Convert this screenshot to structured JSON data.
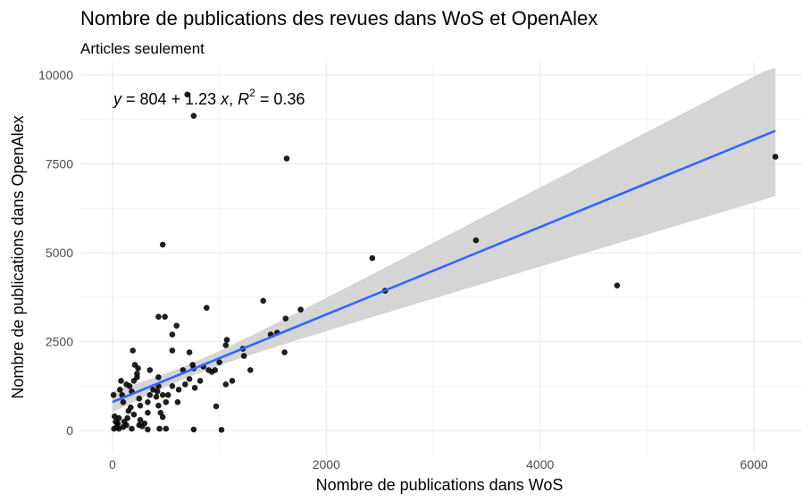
{
  "chart_data": {
    "type": "scatter",
    "title": "Nombre de publications des revues dans WoS et OpenAlex",
    "subtitle": "Articles seulement",
    "xlabel": "Nombre de publications dans WoS",
    "ylabel": "Nombre de publications dans OpenAlex",
    "xlim": [
      -300,
      6450
    ],
    "ylim": [
      -650,
      10350
    ],
    "x_ticks": [
      0,
      2000,
      4000,
      6000
    ],
    "x_tick_labels": [
      "0",
      "2000",
      "4000",
      "6000"
    ],
    "y_ticks": [
      0,
      2500,
      5000,
      7500,
      10000
    ],
    "y_tick_labels": [
      "0",
      "2500",
      "5000",
      "7500",
      "10000"
    ],
    "grid": true,
    "equation": {
      "y": "y",
      "eq_sign": " = ",
      "intercept": "804",
      "plus": " + ",
      "slope": "1.23",
      "x": "x",
      "comma": ", ",
      "r": "R",
      "sup": "2",
      "r2_value": " = 0.36"
    },
    "regression": {
      "intercept": 804,
      "slope": 1.23,
      "x_range": [
        0,
        6200
      ],
      "ci_lower_end": 6600,
      "ci_upper_end": 10200,
      "ci_upper_start": 1100,
      "ci_lower_start": 500,
      "line_color": "#3366FF",
      "ci_color": "#D3D3D3"
    },
    "point_color": "#000000",
    "points": [
      [
        6200,
        7700
      ],
      [
        4720,
        4080
      ],
      [
        3400,
        5350
      ],
      [
        2550,
        3930
      ],
      [
        2430,
        4850
      ],
      [
        1630,
        7650
      ],
      [
        1620,
        3150
      ],
      [
        1610,
        2200
      ],
      [
        1760,
        3400
      ],
      [
        1410,
        3650
      ],
      [
        1480,
        2700
      ],
      [
        1540,
        2750
      ],
      [
        1290,
        1700
      ],
      [
        1220,
        2300
      ],
      [
        1230,
        2100
      ],
      [
        1120,
        1400
      ],
      [
        1070,
        2550
      ],
      [
        1060,
        2400
      ],
      [
        1060,
        1300
      ],
      [
        1000,
        1920
      ],
      [
        970,
        680
      ],
      [
        1020,
        20
      ],
      [
        960,
        1700
      ],
      [
        930,
        1650
      ],
      [
        900,
        1700
      ],
      [
        880,
        3450
      ],
      [
        850,
        1800
      ],
      [
        820,
        1400
      ],
      [
        770,
        1200
      ],
      [
        750,
        1850
      ],
      [
        760,
        1750
      ],
      [
        760,
        8850
      ],
      [
        700,
        9450
      ],
      [
        720,
        1450
      ],
      [
        680,
        1300
      ],
      [
        660,
        1700
      ],
      [
        720,
        2200
      ],
      [
        600,
        2950
      ],
      [
        560,
        2700
      ],
      [
        560,
        2250
      ],
      [
        560,
        1250
      ],
      [
        520,
        1000
      ],
      [
        500,
        800
      ],
      [
        490,
        3200
      ],
      [
        470,
        5230
      ],
      [
        430,
        3200
      ],
      [
        430,
        1500
      ],
      [
        420,
        1100
      ],
      [
        430,
        700
      ],
      [
        450,
        500
      ],
      [
        470,
        380
      ],
      [
        410,
        950
      ],
      [
        350,
        1700
      ],
      [
        330,
        800
      ],
      [
        330,
        500
      ],
      [
        300,
        200
      ],
      [
        280,
        120
      ],
      [
        260,
        300
      ],
      [
        250,
        900
      ],
      [
        240,
        1750
      ],
      [
        230,
        1600
      ],
      [
        210,
        1850
      ],
      [
        200,
        1400
      ],
      [
        180,
        1100
      ],
      [
        190,
        2250
      ],
      [
        170,
        650
      ],
      [
        160,
        1250
      ],
      [
        150,
        550
      ],
      [
        140,
        350
      ],
      [
        130,
        150
      ],
      [
        110,
        250
      ],
      [
        100,
        800
      ],
      [
        90,
        1000
      ],
      [
        80,
        1400
      ],
      [
        70,
        1150
      ],
      [
        60,
        350
      ],
      [
        50,
        200
      ],
      [
        40,
        100
      ],
      [
        30,
        250
      ],
      [
        20,
        400
      ],
      [
        10,
        1000
      ],
      [
        15,
        50
      ],
      [
        60,
        50
      ],
      [
        100,
        100
      ],
      [
        180,
        50
      ],
      [
        250,
        150
      ],
      [
        330,
        30
      ],
      [
        440,
        50
      ],
      [
        500,
        50
      ],
      [
        760,
        30
      ],
      [
        200,
        450
      ],
      [
        260,
        700
      ],
      [
        350,
        1000
      ],
      [
        430,
        1250
      ],
      [
        610,
        800
      ],
      [
        380,
        1150
      ],
      [
        470,
        1000
      ],
      [
        620,
        1150
      ],
      [
        230,
        1500
      ],
      [
        130,
        1300
      ]
    ]
  }
}
